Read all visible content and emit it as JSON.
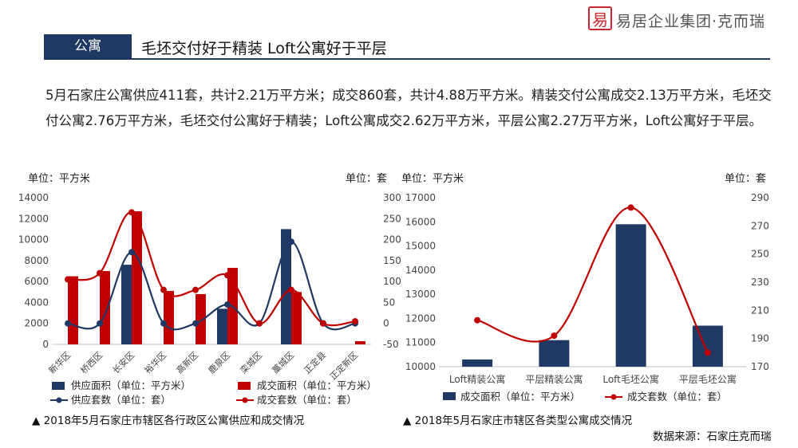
{
  "header": {
    "logo_glyph": "易",
    "logo_text": "易居企业集团·克而瑞"
  },
  "section": {
    "tag": "公寓",
    "title": "毛坯交付好于精装 Loft公寓好于平层"
  },
  "summary": "5月石家庄公寓供应411套，共计2.21万平方米；成交860套，共计4.88万平方米。精装交付公寓成交2.13万平方米，毛坯交付公寓2.76万平方米，毛坯交付公寓好于精装；Loft公寓成交2.62万平方米，平层公寓2.27万平方米，Loft公寓好于平层。",
  "left_chart": {
    "unit_left": "单位：平方米",
    "unit_right": "单位：套",
    "caption": "▲ 2018年5月石家庄市辖区各行政区公寓供应和成交情况"
  },
  "right_chart": {
    "unit_left": "单位：平方米",
    "unit_right": "单位：套",
    "caption": "▲ 2018年5月石家庄市辖区各类型公寓成交情况"
  },
  "source": "数据来源：石家庄克而瑞",
  "colors": {
    "navy": "#1f3864",
    "red": "#c00000"
  },
  "chart_data": [
    {
      "type": "bar",
      "categories": [
        "新华区",
        "桥西区",
        "长安区",
        "裕华区",
        "高新区",
        "鹿泉区",
        "栾城区",
        "藁城区",
        "正定县",
        "正定新区"
      ],
      "ylim": [
        0,
        14000
      ],
      "y2lim": [
        -50,
        300
      ],
      "series": [
        {
          "name": "供应面积（单位：平方米）",
          "kind": "bar",
          "axis": "left",
          "color": "#1f3864",
          "values": [
            0,
            0,
            7600,
            0,
            0,
            3400,
            0,
            11000,
            0,
            0
          ]
        },
        {
          "name": "成交面积（单位：平方米）",
          "kind": "bar",
          "axis": "left",
          "color": "#c00000",
          "values": [
            6500,
            7000,
            12700,
            5100,
            4800,
            7300,
            0,
            5000,
            0,
            300
          ]
        },
        {
          "name": "供应套数（单位：套）",
          "kind": "line",
          "axis": "right",
          "color": "#1f3864",
          "values": [
            0,
            0,
            170,
            0,
            0,
            45,
            0,
            195,
            0,
            0
          ]
        },
        {
          "name": "成交套数（单位：套）",
          "kind": "line",
          "axis": "right",
          "color": "#c00000",
          "values": [
            105,
            120,
            265,
            80,
            80,
            115,
            0,
            80,
            0,
            5
          ]
        }
      ]
    },
    {
      "type": "bar",
      "categories": [
        "Loft精装公寓",
        "平层精装公寓",
        "Loft毛坯公寓",
        "平层毛坯公寓"
      ],
      "ylim": [
        10000,
        17000
      ],
      "y2lim": [
        170,
        290
      ],
      "series": [
        {
          "name": "成交面积（单位：平方米）",
          "kind": "bar",
          "axis": "left",
          "color": "#1f3864",
          "values": [
            10300,
            11100,
            15900,
            11700
          ]
        },
        {
          "name": "成交套数（单位：套）",
          "kind": "line",
          "axis": "right",
          "color": "#c00000",
          "values": [
            203,
            192,
            283,
            180
          ]
        }
      ]
    }
  ]
}
